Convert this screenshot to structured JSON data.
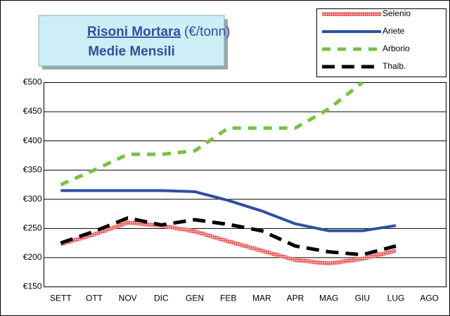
{
  "chart_data": {
    "type": "line",
    "title": "Risoni Mortara",
    "title_unit": "(€/tonn)",
    "subtitle": "Medie Mensili",
    "categories": [
      "SETT",
      "OTT",
      "NOV",
      "DIC",
      "GEN",
      "FEB",
      "MAR",
      "APR",
      "MAG",
      "GIU",
      "LUG",
      "AGO"
    ],
    "series": [
      {
        "name": "Selenio",
        "color": "#e8393a",
        "dash": "2 1",
        "values": [
          223,
          240,
          260,
          255,
          245,
          228,
          212,
          196,
          190,
          198,
          212,
          null
        ]
      },
      {
        "name": "Ariete",
        "color": "#2f4f9f",
        "dash": "none",
        "values": [
          315,
          315,
          315,
          315,
          313,
          298,
          280,
          258,
          246,
          246,
          255,
          null
        ]
      },
      {
        "name": "Arborio",
        "color": "#7ac143",
        "dash": "12 10",
        "values": [
          325,
          350,
          377,
          377,
          383,
          422,
          422,
          422,
          455,
          500,
          null,
          null
        ]
      },
      {
        "name": "Thaib.",
        "color": "#000000",
        "dash": "18 10",
        "values": [
          225,
          245,
          268,
          256,
          265,
          257,
          246,
          220,
          210,
          205,
          220,
          null
        ]
      }
    ],
    "ylim": [
      150,
      500
    ],
    "yticks": [
      {
        "value": 150,
        "label": "€150"
      },
      {
        "value": 200,
        "label": "€200"
      },
      {
        "value": 250,
        "label": "€250"
      },
      {
        "value": 300,
        "label": "€300"
      },
      {
        "value": 350,
        "label": "€350"
      },
      {
        "value": 400,
        "label": "€400"
      },
      {
        "value": 450,
        "label": "€450"
      },
      {
        "value": 500,
        "label": "€500"
      }
    ],
    "grid": true
  }
}
